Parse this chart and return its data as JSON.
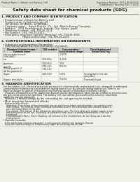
{
  "bg_color": "#f0f0eb",
  "page_bg": "#ffffff",
  "header_left": "Product Name: Lithium Ion Battery Cell",
  "header_right_line1": "Substance Number: SDS-LIB-000010",
  "header_right_line2": "Established / Revision: Dec.7.2010",
  "title": "Safety data sheet for chemical products (SDS)",
  "s1_title": "1. PRODUCT AND COMPANY IDENTIFICATION",
  "s1_lines": [
    "• Product name: Lithium Ion Battery Cell",
    "• Product code: Cylindrical-type cell",
    "   (SF18650U, SF18650L, SF18650A)",
    "• Company name:    Sanyo Electric, Co., Ltd., Mobile Energy Company",
    "• Address:   2001 Kamikamachi, Sumoto-City, Hyogo, Japan",
    "• Telephone number:  +81-799-26-4111",
    "• Fax number:  +81-799-26-4123",
    "• Emergency telephone number (Weekday) +81-799-26-3962",
    "                         (Night and holiday) +81-799-26-4101"
  ],
  "s2_title": "2. COMPOSITIONAL INFORMATION ON INGREDIENTS",
  "s2_line1": "• Substance or preparation: Preparation",
  "s2_line2": "• Information about the chemical nature of product:",
  "tbl_cols": [
    55,
    25,
    35,
    50
  ],
  "tbl_headers": [
    "Chemical chemical name /\nCommon name",
    "CAS number",
    "Concentration /\nConcentration range",
    "Classification and\nhazard labeling"
  ],
  "tbl_rows": [
    [
      "Lithium oxide tentacle\n(LiMnCoNiO₄)",
      "",
      "30-50%",
      ""
    ],
    [
      "Iron",
      "7439-89-6",
      "15-25%",
      ""
    ],
    [
      "Aluminum",
      "7429-90-5",
      "2-5%",
      ""
    ],
    [
      "Graphite\n(Mixed graphite-1)\n(AI film graphite-1)",
      "7782-42-5\n7782-42-5",
      "10-25%",
      ""
    ],
    [
      "Copper",
      "7440-50-8",
      "5-15%",
      "Sensitization of the skin\ngroup No.2"
    ],
    [
      "Organic electrolyte",
      "",
      "10-20%",
      "Flammable liquid"
    ]
  ],
  "s3_title": "3. HAZARDS IDENTIFICATION",
  "s3_para": "  For this battery cell, chemical materials are stored in a hermetically sealed metal case, designed to withstand\n  temperatures or pressures-concentrations during normal use. As a result, during normal use, there is no\n  physical danger of ignition or aspiration and thermal danger of hazardous materials leakage.\n    However, if exposed to a fire, added mechanical shocks, decomposed, when electric current or any miss-use,\n  the gas inside cannot be operated. The battery cell case will be punctured at the extreme, hazardous\n  materials may be released.\n    Moreover, if heated strongly by the surrounding fire, soot gas may be emitted.",
  "s3_b1": "• Most important hazard and effects:",
  "s3_b1_lines": [
    "  Human health effects:",
    "    Inhalation: The release of the electrolyte has an anesthesia action and stimulates a respiratory tract.",
    "    Skin contact: The release of the electrolyte stimulates a skin. The electrolyte skin contact causes a",
    "    sore and stimulation on the skin.",
    "    Eye contact: The release of the electrolyte stimulates eyes. The electrolyte eye contact causes a sore",
    "    and stimulation on the eye. Especially, a substance that causes a strong inflammation of the eye is",
    "    contained.",
    "    Environmental effects: Since a battery cell remains in the environment, do not throw out it into the",
    "    environment."
  ],
  "s3_b2": "• Specific hazards:",
  "s3_b2_lines": [
    "  If the electrolyte contacts with water, it will generate detrimental hydrogen fluoride.",
    "  Since the said electrolyte is inflammatory liquid, do not bring close to fire."
  ]
}
